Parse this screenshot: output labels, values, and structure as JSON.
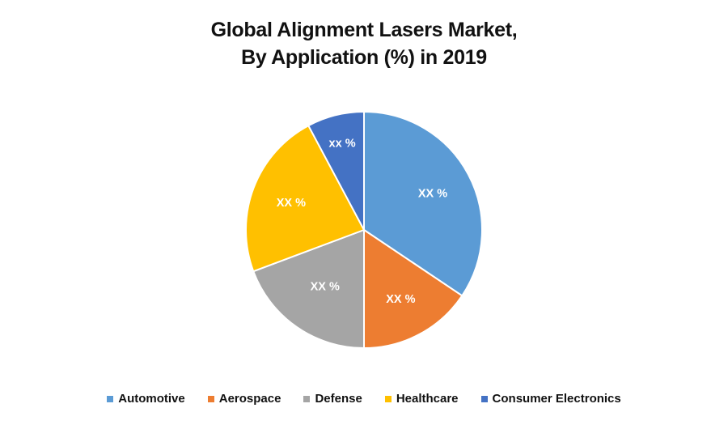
{
  "title": {
    "line1": "Global Alignment Lasers Market,",
    "line2": "By Application (%) in 2019"
  },
  "chart_data": {
    "type": "pie",
    "title": "Global Alignment Lasers Market, By Application (%) in 2019",
    "categories": [
      "Automotive",
      "Aerospace",
      "Defense",
      "Healthcare",
      "Consumer Electronics"
    ],
    "values": [
      34.4,
      15.6,
      19.3,
      22.9,
      7.8
    ],
    "value_note": "approximate, estimated from slice angles; displayed labels are placeholders",
    "data_labels": [
      "XX %",
      "XX %",
      "XX %",
      "XX %",
      "xx %"
    ],
    "colors": [
      "#5B9BD5",
      "#ED7D31",
      "#A5A5A5",
      "#FFC000",
      "#4472C4"
    ],
    "start_angle_deg": 0,
    "direction": "clockwise",
    "legend_position": "bottom"
  },
  "legend": [
    {
      "label": "Automotive",
      "color": "#5B9BD5"
    },
    {
      "label": "Aerospace",
      "color": "#ED7D31"
    },
    {
      "label": "Defense",
      "color": "#A5A5A5"
    },
    {
      "label": "Healthcare",
      "color": "#FFC000"
    },
    {
      "label": "Consumer Electronics",
      "color": "#4472C4"
    }
  ]
}
